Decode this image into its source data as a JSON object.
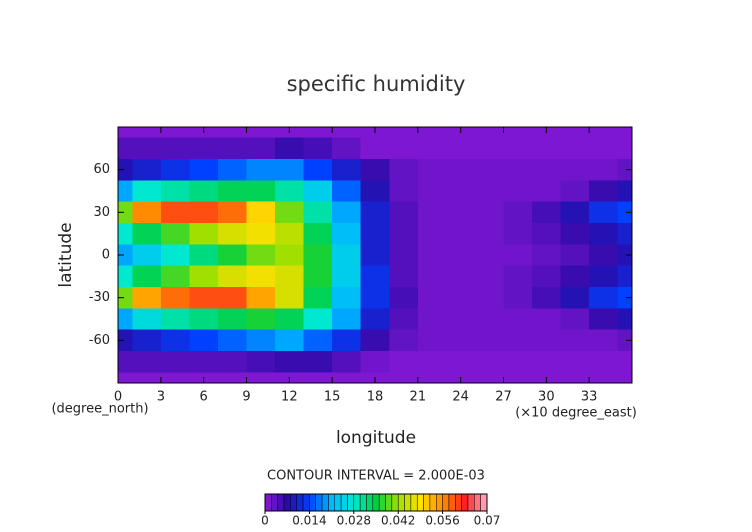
{
  "chart_data": {
    "type": "contour",
    "title": "specific humidity",
    "x_label": "longitude",
    "y_label": "latitude",
    "x_unit": "(×10 degree_east)",
    "y_unit": "(degree_north)",
    "colorbar_label": "CONTOUR INTERVAL = 2.000E-03",
    "contour_interval": 0.002,
    "xlim": [
      0,
      36
    ],
    "xticks": [
      0,
      3,
      6,
      9,
      12,
      15,
      18,
      21,
      24,
      27,
      30,
      33
    ],
    "ylim": [
      -90,
      90
    ],
    "yticks": [
      -60,
      -30,
      0,
      30,
      60
    ],
    "clim": [
      0,
      0.07
    ],
    "cticks": [
      0,
      0.014,
      0.028,
      0.042,
      0.056,
      0.07
    ],
    "colormap": [
      "#8c19d9",
      "#2a0aa8",
      "#0040ff",
      "#00b8ff",
      "#00e8d0",
      "#00d040",
      "#a0e000",
      "#ffe000",
      "#ff8c00",
      "#ff2020",
      "#ffb0c8"
    ],
    "x": [
      0,
      2,
      4,
      6,
      8,
      10,
      12,
      14,
      16,
      18,
      20,
      22,
      24,
      26,
      28,
      30,
      32,
      34,
      36
    ],
    "y": [
      90,
      75,
      60,
      45,
      30,
      15,
      0,
      -15,
      -30,
      -45,
      -60,
      -75,
      -90
    ],
    "z": [
      [
        0.001,
        0.001,
        0.001,
        0.001,
        0.001,
        0.001,
        0.001,
        0.001,
        0.001,
        0.001,
        0.001,
        0.001,
        0.001,
        0.001,
        0.001,
        0.001,
        0.001,
        0.001,
        0.001
      ],
      [
        0.004,
        0.004,
        0.004,
        0.004,
        0.004,
        0.004,
        0.006,
        0.005,
        0.003,
        0.001,
        0.001,
        0.001,
        0.001,
        0.001,
        0.001,
        0.001,
        0.001,
        0.001,
        0.001
      ],
      [
        0.008,
        0.01,
        0.012,
        0.014,
        0.016,
        0.018,
        0.018,
        0.014,
        0.01,
        0.006,
        0.003,
        0.002,
        0.002,
        0.002,
        0.002,
        0.002,
        0.002,
        0.002,
        0.003
      ],
      [
        0.02,
        0.028,
        0.03,
        0.032,
        0.034,
        0.034,
        0.03,
        0.024,
        0.016,
        0.008,
        0.003,
        0.002,
        0.002,
        0.002,
        0.002,
        0.002,
        0.003,
        0.006,
        0.008
      ],
      [
        0.04,
        0.056,
        0.06,
        0.06,
        0.058,
        0.05,
        0.04,
        0.03,
        0.02,
        0.01,
        0.004,
        0.002,
        0.002,
        0.002,
        0.003,
        0.005,
        0.008,
        0.012,
        0.014
      ],
      [
        0.028,
        0.034,
        0.038,
        0.042,
        0.046,
        0.048,
        0.044,
        0.034,
        0.022,
        0.01,
        0.004,
        0.002,
        0.002,
        0.002,
        0.003,
        0.004,
        0.006,
        0.008,
        0.01
      ],
      [
        0.02,
        0.024,
        0.028,
        0.032,
        0.036,
        0.04,
        0.042,
        0.036,
        0.024,
        0.01,
        0.004,
        0.002,
        0.002,
        0.002,
        0.002,
        0.003,
        0.004,
        0.006,
        0.008
      ],
      [
        0.028,
        0.034,
        0.038,
        0.042,
        0.046,
        0.048,
        0.046,
        0.036,
        0.024,
        0.012,
        0.004,
        0.002,
        0.002,
        0.002,
        0.003,
        0.004,
        0.006,
        0.008,
        0.01
      ],
      [
        0.04,
        0.054,
        0.058,
        0.06,
        0.06,
        0.054,
        0.046,
        0.034,
        0.022,
        0.012,
        0.005,
        0.002,
        0.002,
        0.002,
        0.003,
        0.005,
        0.008,
        0.012,
        0.014
      ],
      [
        0.02,
        0.026,
        0.03,
        0.032,
        0.034,
        0.036,
        0.034,
        0.028,
        0.02,
        0.01,
        0.004,
        0.002,
        0.002,
        0.002,
        0.002,
        0.002,
        0.003,
        0.006,
        0.008
      ],
      [
        0.008,
        0.01,
        0.012,
        0.014,
        0.016,
        0.018,
        0.02,
        0.016,
        0.012,
        0.006,
        0.003,
        0.002,
        0.002,
        0.002,
        0.002,
        0.002,
        0.002,
        0.002,
        0.003
      ],
      [
        0.004,
        0.004,
        0.004,
        0.004,
        0.004,
        0.005,
        0.006,
        0.006,
        0.004,
        0.002,
        0.001,
        0.001,
        0.001,
        0.001,
        0.001,
        0.001,
        0.001,
        0.001,
        0.001
      ],
      [
        0.001,
        0.001,
        0.001,
        0.001,
        0.001,
        0.001,
        0.001,
        0.001,
        0.001,
        0.001,
        0.001,
        0.001,
        0.001,
        0.001,
        0.001,
        0.001,
        0.001,
        0.001,
        0.001
      ]
    ]
  }
}
